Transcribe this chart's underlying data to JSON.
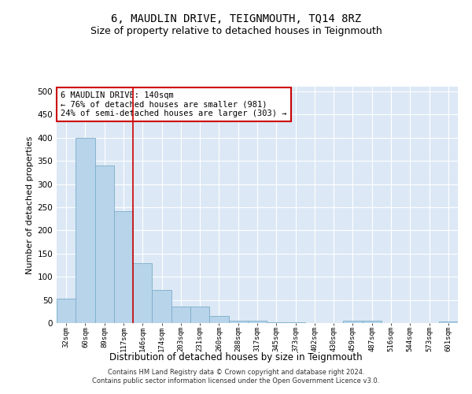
{
  "title": "6, MAUDLIN DRIVE, TEIGNMOUTH, TQ14 8RZ",
  "subtitle": "Size of property relative to detached houses in Teignmouth",
  "xlabel": "Distribution of detached houses by size in Teignmouth",
  "ylabel": "Number of detached properties",
  "categories": [
    "32sqm",
    "60sqm",
    "89sqm",
    "117sqm",
    "146sqm",
    "174sqm",
    "203sqm",
    "231sqm",
    "260sqm",
    "288sqm",
    "317sqm",
    "345sqm",
    "373sqm",
    "402sqm",
    "430sqm",
    "459sqm",
    "487sqm",
    "516sqm",
    "544sqm",
    "573sqm",
    "601sqm"
  ],
  "values": [
    52,
    400,
    340,
    242,
    130,
    72,
    35,
    35,
    16,
    5,
    5,
    2,
    2,
    0,
    0,
    5,
    5,
    0,
    0,
    0,
    3
  ],
  "bar_color": "#b8d4ea",
  "bar_edge_color": "#7aaec8",
  "vline_color": "#cc0000",
  "vline_x_index": 3.5,
  "annotation_text": "6 MAUDLIN DRIVE: 140sqm\n← 76% of detached houses are smaller (981)\n24% of semi-detached houses are larger (303) →",
  "annotation_box_facecolor": "white",
  "annotation_box_edgecolor": "#cc0000",
  "ylim": [
    0,
    510
  ],
  "yticks": [
    0,
    50,
    100,
    150,
    200,
    250,
    300,
    350,
    400,
    450,
    500
  ],
  "footer_line1": "Contains HM Land Registry data © Crown copyright and database right 2024.",
  "footer_line2": "Contains public sector information licensed under the Open Government Licence v3.0.",
  "bg_color": "#dce8f5",
  "title_fontsize": 10,
  "subtitle_fontsize": 9
}
